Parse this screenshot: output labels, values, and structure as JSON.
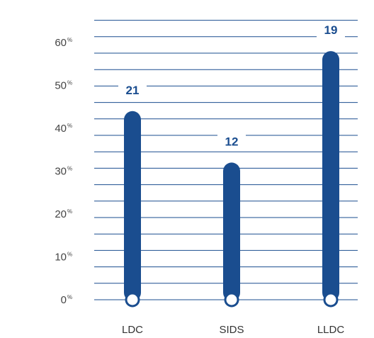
{
  "chart_data": {
    "type": "bar",
    "categories": [
      "LDC",
      "SIDS",
      "LLDC"
    ],
    "values": [
      44,
      32,
      58
    ],
    "data_labels": [
      "21",
      "12",
      "19"
    ],
    "y_ticks": [
      "0",
      "10",
      "20",
      "30",
      "40",
      "50",
      "60"
    ],
    "y_tick_unit": "%",
    "ylim": [
      0,
      70
    ],
    "grid": true,
    "title": "",
    "xlabel": "",
    "ylabel": "",
    "colors": {
      "bar": "#1a4d8f",
      "grid": "#1a4d8f",
      "marker_fill": "#ffffff",
      "label": "#1a4d8f"
    }
  }
}
